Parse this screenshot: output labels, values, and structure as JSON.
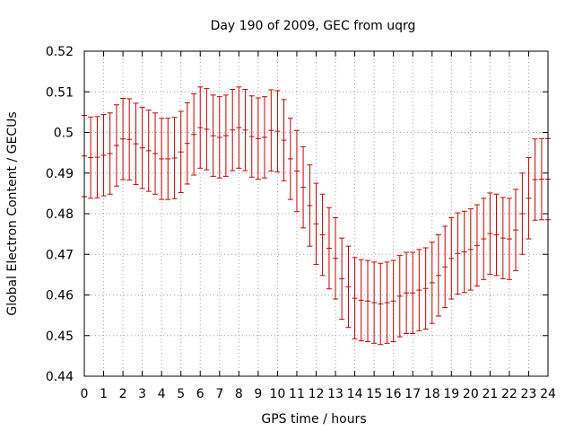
{
  "chart_data": {
    "type": "line",
    "title": "Day 190 of 2009, GEC from uqrg",
    "xlabel": "GPS time / hours",
    "ylabel": "Global Electron Content / GECUs",
    "xlim": [
      0,
      24
    ],
    "ylim": [
      0.44,
      0.52
    ],
    "grid": true,
    "x_ticks": [
      "0",
      "1",
      "2",
      "3",
      "4",
      "5",
      "6",
      "7",
      "8",
      "9",
      "10",
      "11",
      "12",
      "13",
      "14",
      "15",
      "16",
      "17",
      "18",
      "19",
      "20",
      "21",
      "22",
      "23",
      "24"
    ],
    "y_ticks": [
      "0.44",
      "0.45",
      "0.46",
      "0.47",
      "0.48",
      "0.49",
      "0.5",
      "0.51",
      "0.52"
    ],
    "series": [
      {
        "name": "GEC",
        "color": "#cc0000",
        "error": 0.01,
        "x": [
          0,
          0.33,
          0.67,
          1,
          1.33,
          1.67,
          2,
          2.33,
          2.67,
          3,
          3.33,
          3.67,
          4,
          4.33,
          4.67,
          5,
          5.33,
          5.67,
          6,
          6.33,
          6.67,
          7,
          7.33,
          7.67,
          8,
          8.33,
          8.67,
          9,
          9.33,
          9.67,
          10,
          10.33,
          10.67,
          11,
          11.33,
          11.67,
          12,
          12.33,
          12.67,
          13,
          13.33,
          13.67,
          14,
          14.33,
          14.67,
          15,
          15.33,
          15.67,
          16,
          16.33,
          16.67,
          17,
          17.33,
          17.67,
          18,
          18.33,
          18.67,
          19,
          19.33,
          19.67,
          20,
          20.33,
          20.67,
          21,
          21.33,
          21.67,
          22,
          22.33,
          22.67,
          23,
          23.33,
          23.67,
          24
        ],
        "y": [
          0.4942,
          0.4938,
          0.4939,
          0.4944,
          0.4948,
          0.4968,
          0.4984,
          0.4983,
          0.4972,
          0.4962,
          0.4955,
          0.4948,
          0.4935,
          0.4935,
          0.4937,
          0.4952,
          0.4973,
          0.4995,
          0.5012,
          0.5008,
          0.4992,
          0.4988,
          0.4992,
          0.5006,
          0.5012,
          0.5006,
          0.499,
          0.4985,
          0.4988,
          0.5005,
          0.5003,
          0.4981,
          0.4935,
          0.4905,
          0.4865,
          0.482,
          0.4775,
          0.4748,
          0.4715,
          0.469,
          0.464,
          0.462,
          0.4592,
          0.4587,
          0.4585,
          0.4581,
          0.4578,
          0.4581,
          0.4585,
          0.4597,
          0.4605,
          0.4605,
          0.4612,
          0.4616,
          0.463,
          0.4648,
          0.4669,
          0.469,
          0.4702,
          0.4706,
          0.4712,
          0.4722,
          0.4738,
          0.4751,
          0.4748,
          0.474,
          0.4738,
          0.476,
          0.48,
          0.4838,
          0.4884,
          0.4885,
          0.4885
        ]
      }
    ]
  }
}
